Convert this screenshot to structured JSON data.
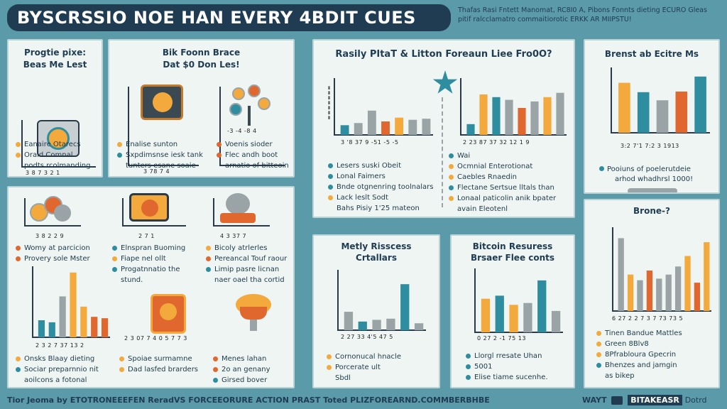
{
  "header": {
    "title": "BYSCRSSIO NOE HAN EVERY 4BDIT CUES",
    "subtitle": "Thafas Rasi Fntett Manomat, RC8I0 A, Pibons Fonnts dieting ECURO Gleas pitif ralcclamatro commaitiorotic ERKK AR MIIPSTU!"
  },
  "colors": {
    "teal": "#2e8ea0",
    "orange": "#f4a93c",
    "burnt": "#e0672e",
    "gray": "#9aa3a6",
    "navy": "#1f3c52"
  },
  "panels": {
    "p1": {
      "title_a": "Progtie pixe:",
      "title_b": "Beas Me Lest",
      "ticks": "3 8 7 3 2 1",
      "icon": "coin-safe-icon",
      "bullets": [
        {
          "text": "Eanaire Otarecs",
          "color": "#f4a93c"
        },
        {
          "text": "Oraid Comnal",
          "color": "#f4a93c"
        },
        {
          "text": "podts rcolmanding",
          "color": "#2e8ea0"
        }
      ]
    },
    "p2": {
      "title_a": "Bik Foonn Brace",
      "title_b": "Dat $0 Don Les!",
      "ticks": "3 78 7 4",
      "ticks2": "-3 -4 -8 4",
      "icon": "coin-board-icon",
      "icon2": "coin-tree-icon",
      "bullets": [
        {
          "text": "Enalise sunton",
          "color": "#f4a93c"
        },
        {
          "text": "Sxpdimsnse iesk tank",
          "color": "#2e8ea0"
        },
        {
          "text": "tunters esane soaie",
          "color": "#2e8ea0"
        }
      ],
      "bullets2": [
        {
          "text": "Voenis sioder",
          "color": "#e0672e"
        },
        {
          "text": "Flec andh boot",
          "color": "#e0672e"
        },
        {
          "text": "arnatio of bitteoin",
          "color": "#2e8ea0"
        }
      ]
    },
    "p3": {
      "title": "Rasily PItaT & Litton Foreaun Liee Fro0O?",
      "burst_icon": "starburst-icon",
      "ticks_left": "3 '8 37 9 -51 -5 -5",
      "ticks_right": "2 23 87 37 32 12 1 9",
      "bullets_left": [
        {
          "text": "Lesers suski Obeit",
          "color": "#2e8ea0"
        },
        {
          "text": "Lonal Faimers",
          "color": "#2e8ea0"
        },
        {
          "text": "Bnde otgnenring toolnalars",
          "color": "#2e8ea0"
        },
        {
          "text": "Lack leslt Sodt",
          "color": "#f4a93c"
        },
        {
          "text": "Bahs Pisiy 1'25 mateon",
          "color": ""
        }
      ],
      "bullets_right": [
        {
          "text": "Wai",
          "color": "#2e8ea0"
        },
        {
          "text": "Ocmnial Enterotionat",
          "color": "#f4a93c"
        },
        {
          "text": "Caebles Rnaedin",
          "color": "#f4a93c"
        },
        {
          "text": "Flectane Sertsue lltals than",
          "color": "#2e8ea0"
        },
        {
          "text": "Lonaal paticolin anik bpater",
          "color": "#f4a93c"
        },
        {
          "text": "avain Eleotenl",
          "color": ""
        }
      ]
    },
    "p4": {
      "title": "Brenst ab Ecitre Ms",
      "ticks": "3:2 7'1 7:2 3 1913",
      "note_a": "Pooiuns of poelerutdeie",
      "note_b": "arhod whadhrsl 1000!",
      "key_icon": "key-icon",
      "series_colors": [
        "#f4a93c",
        "#2e8ea0",
        "#9aa3a6",
        "#e0672e",
        "#2e8ea0"
      ]
    },
    "p5": {
      "ticks_a": "3 8 2 2 9",
      "ticks_b": "2 7 1",
      "ticks_c": "4 3 37 7",
      "bullets_a": [
        {
          "text": "Womy at parcicion",
          "color": "#e0672e"
        },
        {
          "text": "Provery sole Mster",
          "color": "#e0672e"
        }
      ],
      "bullets_b": [
        {
          "text": "Elnspran Buoming",
          "color": "#2e8ea0"
        },
        {
          "text": "Fiape nel ollt",
          "color": "#f4a93c"
        },
        {
          "text": "Progatnnatio the",
          "color": "#2e8ea0"
        },
        {
          "text": "stund.",
          "color": ""
        }
      ],
      "bullets_c": [
        {
          "text": "Bicoly atrlerles",
          "color": "#f4a93c"
        },
        {
          "text": "Pereancal Touf raour",
          "color": "#e0672e"
        },
        {
          "text": "Limip pasre licnan",
          "color": "#2e8ea0"
        },
        {
          "text": "naer oael tha cortid",
          "color": ""
        }
      ],
      "ticks_d": "2 3 2 7 37 13 2",
      "ticks_e": "2 3 07 7 4 0 5 7 7 3",
      "bullets_d": [
        {
          "text": "Onsks Blaay dieting",
          "color": "#f4a93c"
        },
        {
          "text": "Sociar preparnnio nit",
          "color": "#2e8ea0"
        },
        {
          "text": "aoilcons a fotonal",
          "color": ""
        }
      ],
      "bullets_e": [
        {
          "text": "Spoiae surmamne",
          "color": "#f4a93c"
        },
        {
          "text": "Dad lasfed brarders",
          "color": "#f4a93c"
        }
      ],
      "bullets_f": [
        {
          "text": "Menes lahan",
          "color": "#e0672e"
        },
        {
          "text": "2o an genany",
          "color": "#e0672e"
        },
        {
          "text": "Girsed bover",
          "color": "#2e8ea0"
        }
      ],
      "icons": [
        "coin-stack-icon",
        "coin-scanner-icon",
        "bitcoin-badge-icon",
        "safe-box-icon",
        "coin-basket-icon"
      ]
    },
    "p6": {
      "title_a": "Metly Risscess",
      "title_b": "Crtallars",
      "ticks": "2 27 33 4'5 47 5",
      "bullets": [
        {
          "text": "Cornonucal hnacle",
          "color": "#f4a93c"
        },
        {
          "text": "Porcerate ult",
          "color": "#f4a93c"
        },
        {
          "text": "Sbdl",
          "color": ""
        }
      ]
    },
    "p7": {
      "title_a": "Bitcoin Resuress",
      "title_b": "Brsaer Flee conts",
      "ticks": "0 27 2 -1 75 13",
      "bullets": [
        {
          "text": "Llorgl rresate Uhan",
          "color": "#2e8ea0"
        },
        {
          "text": "5001",
          "color": "#2e8ea0"
        },
        {
          "text": "Elise tiame sucenhe.",
          "color": "#2e8ea0"
        }
      ]
    },
    "p8": {
      "title": "Brone-?",
      "ticks": "6 27 2 2 7 3 7 73 73 5",
      "bullets": [
        {
          "text": "Tinen Bandue Mattles",
          "color": "#f4a93c"
        },
        {
          "text": "Green 8Blv8",
          "color": "#f4a93c"
        },
        {
          "text": "8Pfrabloura Gpecrin",
          "color": "#f4a93c"
        },
        {
          "text": "Bhenzes and jamgin",
          "color": "#2e8ea0"
        },
        {
          "text": "as bikep",
          "color": ""
        }
      ]
    }
  },
  "footer": {
    "left": "Tior Jeoma by ETOTRONEEEFEN ReradVS FORCEEORURE ACTION PRAST Toted PLIZFOREARND.COMMBERBHBE",
    "right": "WAYT",
    "brand": "BITAKEASR",
    "brand_sub": "Dotrd",
    "brand_icon": "logo-icon"
  },
  "chart_data": [
    {
      "type": "bar",
      "title": "Rasily PItaT & Litton Foreaun Liee Fro0O?",
      "note": "left block",
      "categories": [
        "3",
        "'8",
        "37",
        "9",
        "-51",
        "-5",
        "-5"
      ],
      "values": [
        18,
        22,
        45,
        25,
        32,
        28,
        30
      ],
      "colors": [
        "#2e8ea0",
        "#9aa3a6",
        "#9aa3a6",
        "#e0672e",
        "#f4a93c",
        "#9aa3a6",
        "#9aa3a6"
      ]
    },
    {
      "type": "bar",
      "title": "Rasily PItaT & Litton Foreaun Liee Fro0O?",
      "note": "right block",
      "categories": [
        "2",
        "23",
        "87",
        "37",
        "32",
        "12",
        "1",
        "9"
      ],
      "values": [
        20,
        75,
        70,
        65,
        50,
        62,
        70,
        78
      ],
      "colors": [
        "#2e8ea0",
        "#f4a93c",
        "#2e8ea0",
        "#9aa3a6",
        "#e0672e",
        "#9aa3a6",
        "#f4a93c",
        "#9aa3a6"
      ]
    },
    {
      "type": "bar",
      "title": "Brenst ab Ecitre Ms",
      "categories": [
        "3:2",
        "7'1",
        "7:2",
        "3",
        "1913"
      ],
      "values": [
        80,
        65,
        52,
        66,
        90
      ],
      "colors": [
        "#f4a93c",
        "#2e8ea0",
        "#9aa3a6",
        "#e0672e",
        "#2e8ea0"
      ]
    },
    {
      "type": "bar",
      "title": "Metly Risscess Crtallars",
      "categories": [
        "2",
        "27",
        "33",
        "4'5",
        "47",
        "5"
      ],
      "values": [
        32,
        15,
        18,
        20,
        80,
        12
      ],
      "colors": [
        "#9aa3a6",
        "#2e8ea0",
        "#9aa3a6",
        "#9aa3a6",
        "#2e8ea0",
        "#9aa3a6"
      ]
    },
    {
      "type": "bar",
      "title": "Bitcoin Resuress Brsaer Flee conts",
      "categories": [
        "0",
        "27",
        "2",
        "-1",
        "75",
        "13"
      ],
      "values": [
        55,
        60,
        45,
        48,
        85,
        35
      ],
      "colors": [
        "#f4a93c",
        "#2e8ea0",
        "#f4a93c",
        "#9aa3a6",
        "#2e8ea0",
        "#9aa3a6"
      ]
    },
    {
      "type": "bar",
      "title": "Brone-?",
      "categories": [
        "6",
        "27",
        "2",
        "2",
        "7",
        "3",
        "7",
        "73",
        "73",
        "5"
      ],
      "values": [
        90,
        45,
        38,
        50,
        40,
        45,
        55,
        68,
        35,
        85
      ],
      "colors": [
        "#9aa3a6",
        "#f4a93c",
        "#9aa3a6",
        "#e0672e",
        "#9aa3a6",
        "#9aa3a6",
        "#9aa3a6",
        "#f4a93c",
        "#e0672e",
        "#f4a93c"
      ]
    },
    {
      "type": "bar",
      "note": "lower-left chart",
      "categories": [
        "2",
        "3",
        "2",
        "7",
        "37",
        "13",
        "2"
      ],
      "values": [
        25,
        22,
        60,
        95,
        45,
        30,
        28
      ],
      "colors": [
        "#2e8ea0",
        "#2e8ea0",
        "#9aa3a6",
        "#f4a93c",
        "#f4a93c",
        "#e0672e",
        "#e0672e"
      ]
    }
  ]
}
